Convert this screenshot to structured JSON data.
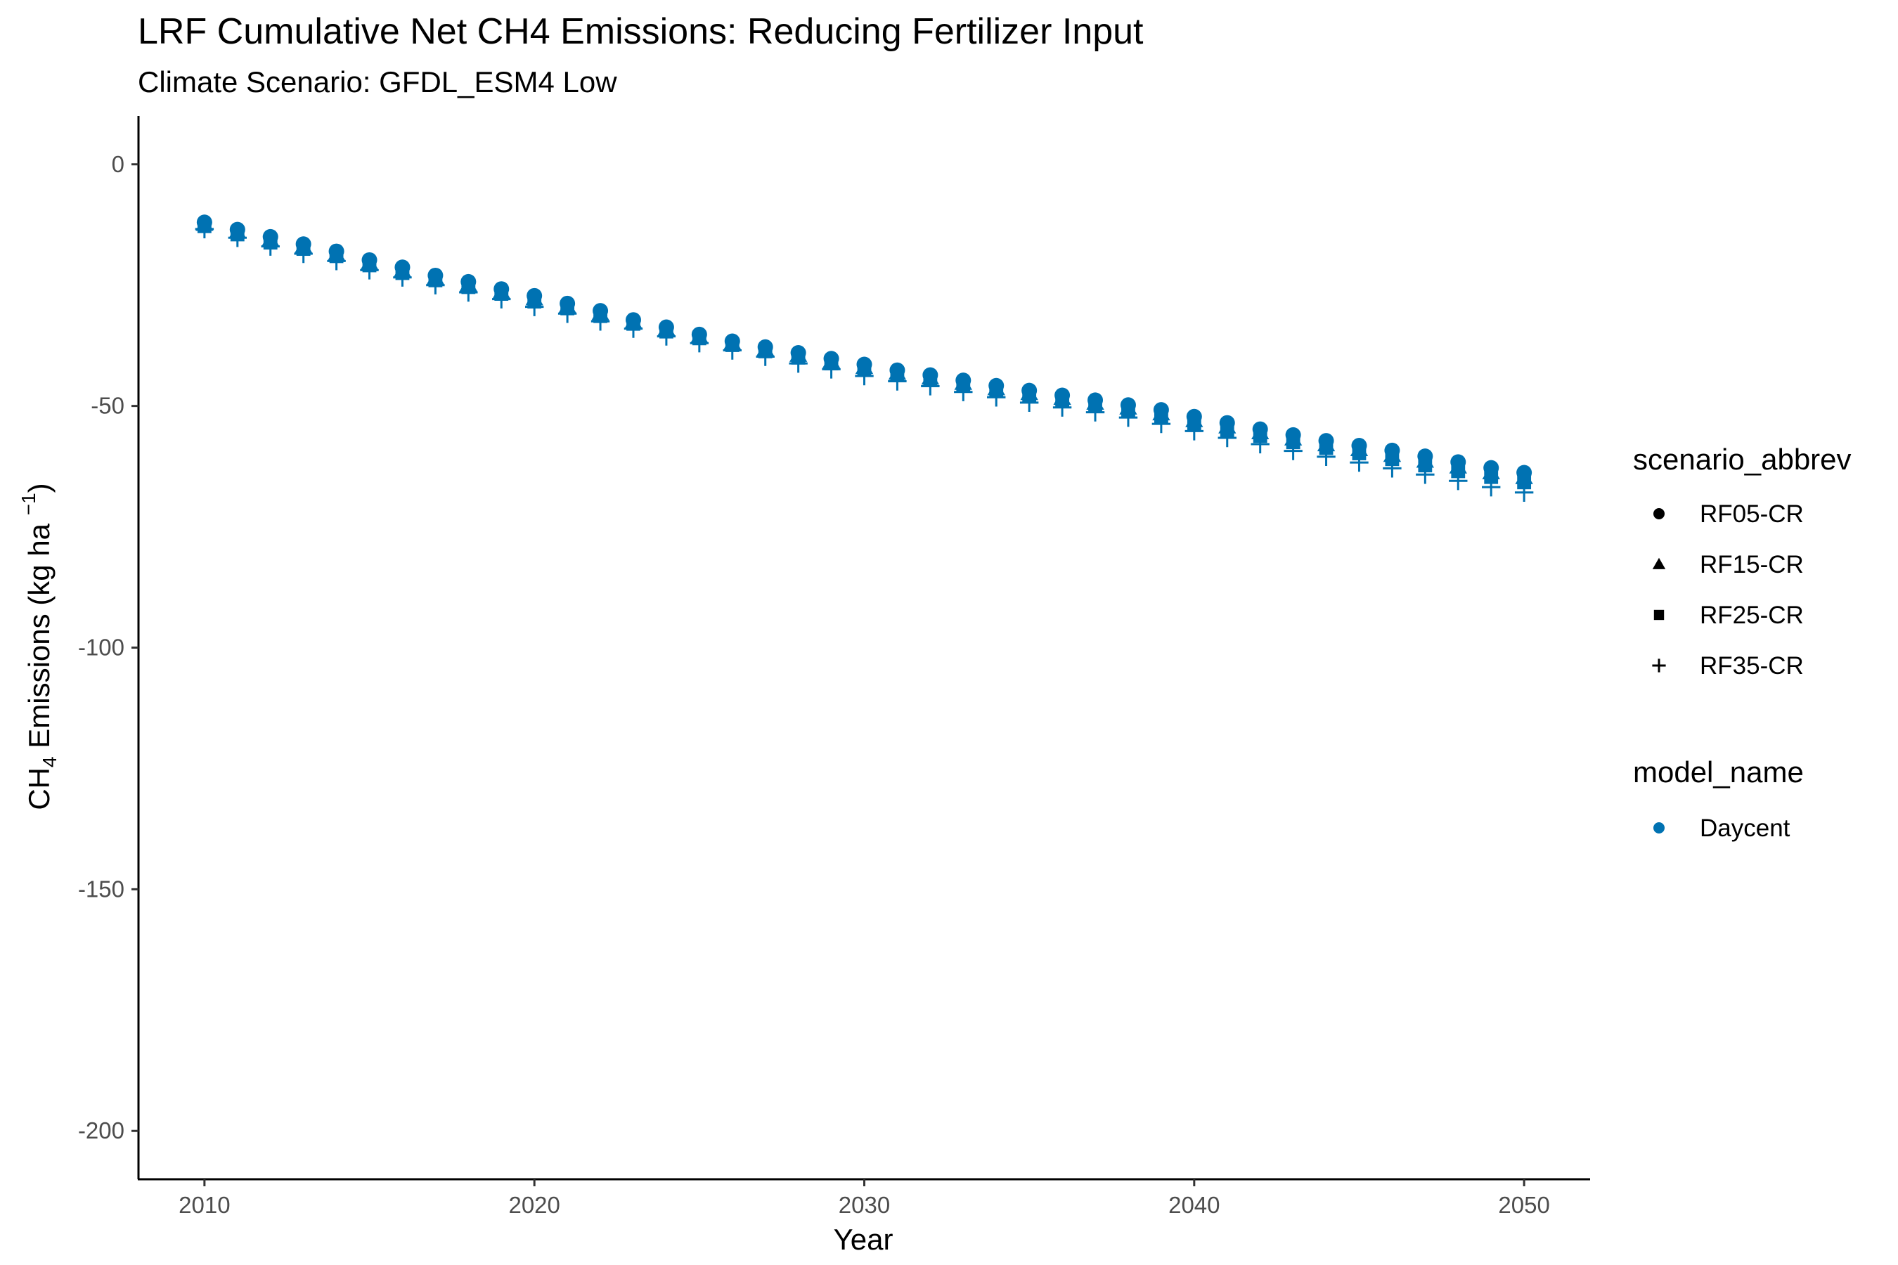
{
  "chart_data": {
    "type": "scatter",
    "title": "LRF  Cumulative Net CH4 Emissions: Reducing Fertilizer Input",
    "subtitle": "Climate Scenario: GFDL_ESM4 Low",
    "xlabel": "Year",
    "ylabel": {
      "prefix": "CH",
      "sub": "4",
      "mid": " Emissions (kg ha ",
      "sup": "−1",
      "suffix": ")"
    },
    "xlim": [
      2008,
      2052
    ],
    "ylim": [
      -210,
      10
    ],
    "x_ticks": [
      2010,
      2020,
      2030,
      2040,
      2050
    ],
    "y_ticks": [
      0,
      -50,
      -100,
      -150,
      -200
    ],
    "x_tick_labels": [
      "2010",
      "2020",
      "2030",
      "2040",
      "2050"
    ],
    "y_tick_labels": [
      "0",
      "-50",
      "-100",
      "-150",
      "-200"
    ],
    "grid": false,
    "legend_position": "right",
    "point_color": "#0072B2",
    "x": [
      2010,
      2011,
      2012,
      2013,
      2014,
      2015,
      2016,
      2017,
      2018,
      2019,
      2020,
      2021,
      2022,
      2023,
      2024,
      2025,
      2026,
      2027,
      2028,
      2029,
      2030,
      2031,
      2032,
      2033,
      2034,
      2035,
      2036,
      2037,
      2038,
      2039,
      2040,
      2041,
      2042,
      2043,
      2044,
      2045,
      2046,
      2047,
      2048,
      2049,
      2050
    ],
    "series": [
      {
        "name": "RF05-CR",
        "shape": "circle",
        "values": [
          -12.0,
          -13.5,
          -15.0,
          -16.5,
          -18.0,
          -19.8,
          -21.3,
          -23.0,
          -24.3,
          -25.8,
          -27.2,
          -28.8,
          -30.3,
          -32.2,
          -33.7,
          -35.2,
          -36.6,
          -37.8,
          -39.0,
          -40.2,
          -41.4,
          -42.6,
          -43.6,
          -44.7,
          -45.8,
          -46.8,
          -47.8,
          -48.8,
          -49.8,
          -50.8,
          -52.2,
          -53.5,
          -54.8,
          -56.0,
          -57.2,
          -58.2,
          -59.2,
          -60.4,
          -61.6,
          -62.8,
          -63.8
        ]
      },
      {
        "name": "RF15-CR",
        "shape": "triangle",
        "values": [
          -12.4,
          -14.0,
          -15.6,
          -17.0,
          -18.6,
          -20.4,
          -22.0,
          -23.5,
          -24.9,
          -26.4,
          -27.8,
          -29.4,
          -30.9,
          -32.6,
          -34.1,
          -35.6,
          -37.0,
          -38.3,
          -39.5,
          -40.8,
          -42.0,
          -43.2,
          -44.2,
          -45.3,
          -46.4,
          -47.4,
          -48.4,
          -49.4,
          -50.4,
          -51.6,
          -53.0,
          -54.3,
          -55.5,
          -56.8,
          -58.0,
          -59.0,
          -60.2,
          -61.4,
          -62.6,
          -63.8,
          -64.8
        ]
      },
      {
        "name": "RF25-CR",
        "shape": "square",
        "values": [
          -12.8,
          -14.5,
          -16.2,
          -17.5,
          -19.0,
          -20.9,
          -22.5,
          -24.0,
          -25.4,
          -26.8,
          -28.4,
          -29.8,
          -31.4,
          -33.0,
          -34.6,
          -36.0,
          -37.4,
          -38.7,
          -40.0,
          -41.2,
          -42.5,
          -43.6,
          -44.6,
          -45.8,
          -46.8,
          -47.9,
          -48.8,
          -49.9,
          -50.9,
          -52.2,
          -53.6,
          -55.0,
          -56.2,
          -57.5,
          -58.7,
          -59.8,
          -61.0,
          -62.3,
          -63.5,
          -64.7,
          -65.8
        ]
      },
      {
        "name": "RF35-CR",
        "shape": "plus",
        "values": [
          -13.4,
          -15.2,
          -17.0,
          -18.5,
          -20.0,
          -21.9,
          -23.4,
          -25.0,
          -26.5,
          -27.9,
          -29.5,
          -30.9,
          -32.5,
          -34.0,
          -35.6,
          -37.0,
          -38.5,
          -39.8,
          -41.2,
          -42.4,
          -43.8,
          -44.9,
          -45.9,
          -47.1,
          -48.2,
          -49.3,
          -50.3,
          -51.3,
          -52.4,
          -53.7,
          -55.2,
          -56.6,
          -57.9,
          -59.3,
          -60.5,
          -61.7,
          -62.9,
          -64.2,
          -65.5,
          -66.8,
          -67.9
        ]
      }
    ],
    "legend_shape": {
      "title": "scenario_abbrev",
      "entries": [
        "RF05-CR",
        "RF15-CR",
        "RF25-CR",
        "RF35-CR"
      ]
    },
    "legend_color": {
      "title": "model_name",
      "entries": [
        "Daycent"
      ]
    }
  }
}
